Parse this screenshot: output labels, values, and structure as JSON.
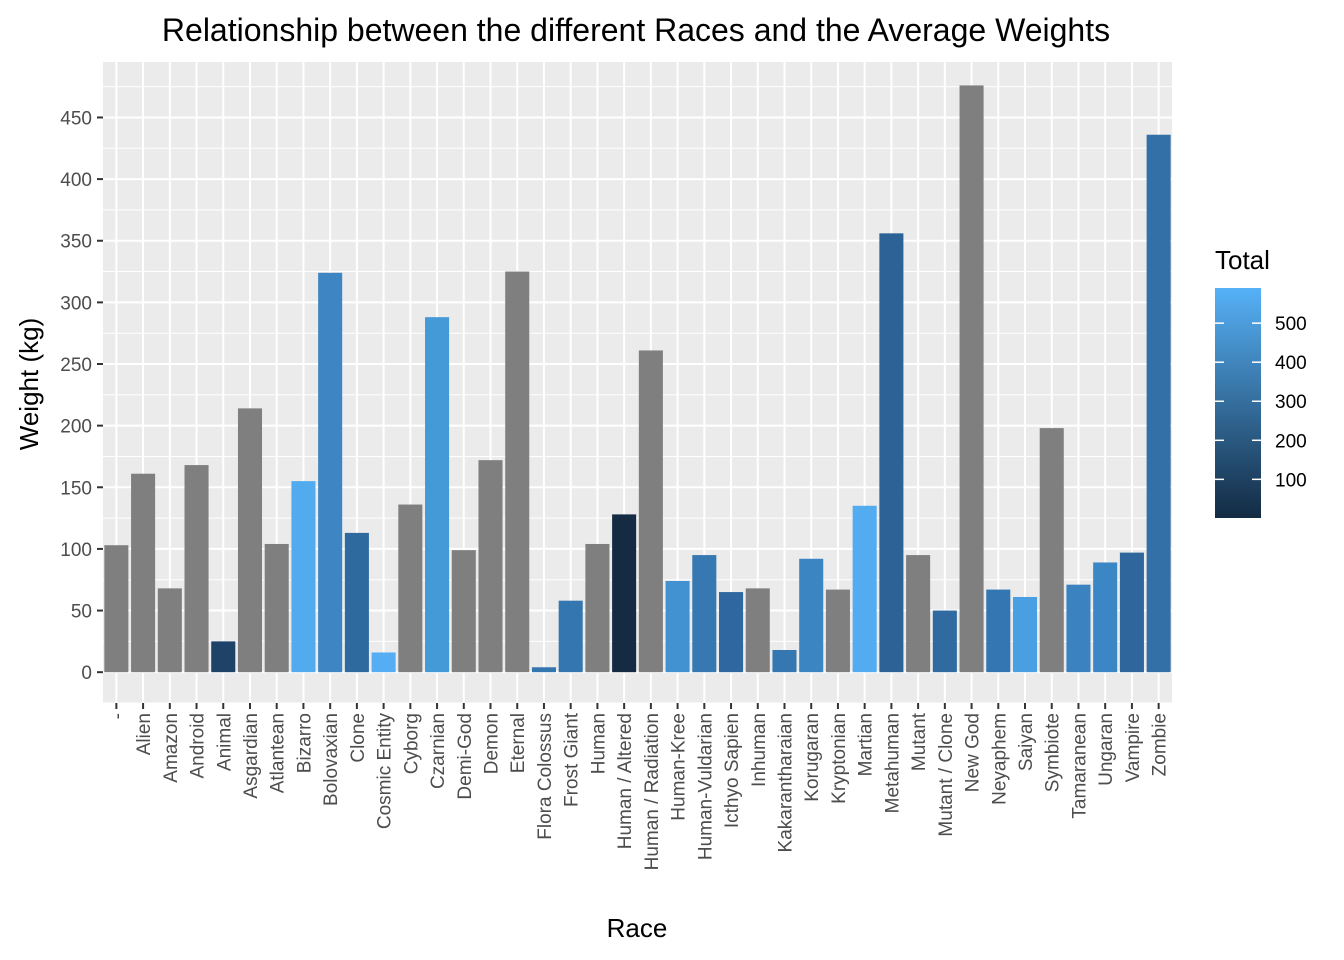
{
  "chart_data": {
    "type": "bar",
    "title": "Relationship between the different Races and the Average Weights",
    "xlabel": "Race",
    "ylabel": "Weight (kg)",
    "ylim": [
      -25,
      495
    ],
    "yticks": [
      0,
      50,
      100,
      150,
      200,
      250,
      300,
      350,
      400,
      450
    ],
    "grid": true,
    "categories": [
      "-",
      "Alien",
      "Amazon",
      "Android",
      "Animal",
      "Asgardian",
      "Atlantean",
      "Bizarro",
      "Bolovaxian",
      "Clone",
      "Cosmic Entity",
      "Cyborg",
      "Czarnian",
      "Demi-God",
      "Demon",
      "Eternal",
      "Flora Colossus",
      "Frost Giant",
      "Human",
      "Human / Altered",
      "Human / Radiation",
      "Human-Kree",
      "Human-Vuldarian",
      "Icthyo Sapien",
      "Inhuman",
      "Kakarantharaian",
      "Korugaran",
      "Kryptonian",
      "Martian",
      "Metahuman",
      "Mutant",
      "Mutant / Clone",
      "New God",
      "Neyaphem",
      "Saiyan",
      "Symbiote",
      "Tamaranean",
      "Ungaran",
      "Vampire",
      "Zombie"
    ],
    "values": [
      103,
      161,
      68,
      168,
      25,
      214,
      104,
      155,
      324,
      113,
      16,
      136,
      288,
      99,
      172,
      325,
      4,
      58,
      104,
      128,
      261,
      74,
      95,
      65,
      68,
      18,
      92,
      67,
      135,
      356,
      95,
      50,
      476,
      67,
      61,
      198,
      71,
      89,
      97,
      436
    ],
    "fill_colors": [
      "#7f7f7f",
      "#7f7f7f",
      "#7f7f7f",
      "#7f7f7f",
      "#1f4368",
      "#7f7f7f",
      "#7f7f7f",
      "#52abee",
      "#3e86c3",
      "#2f6a9e",
      "#55aef3",
      "#7f7f7f",
      "#4499d7",
      "#7f7f7f",
      "#7f7f7f",
      "#7f7f7f",
      "#3476b0",
      "#3476b0",
      "#7f7f7f",
      "#142b43",
      "#7f7f7f",
      "#4291d0",
      "#3578b2",
      "#2f68a0",
      "#7f7f7f",
      "#3577b0",
      "#3c85c3",
      "#7f7f7f",
      "#53acf0",
      "#2c6296",
      "#7f7f7f",
      "#2f6aa1",
      "#7f7f7f",
      "#3476b1",
      "#4a9fe2",
      "#7f7f7f",
      "#3a82c0",
      "#3b86c4",
      "#2f679d",
      "#3470a8"
    ],
    "legend": {
      "title": "Total",
      "placement": "right",
      "range": [
        1,
        590
      ],
      "breaks": [
        100,
        200,
        300,
        400,
        500
      ],
      "color_low": "#132b43",
      "color_high": "#56b1f7"
    },
    "panel_background": "#ebebeb",
    "grid_color": "#ffffff",
    "na_color": "#7f7f7f"
  }
}
